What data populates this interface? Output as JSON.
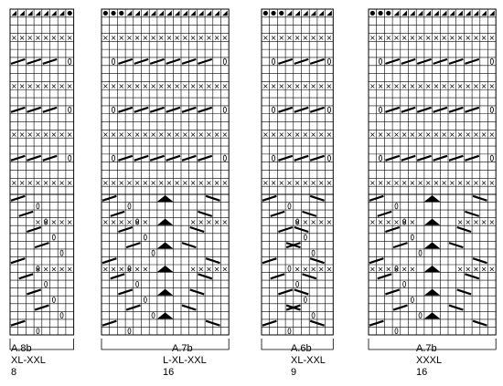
{
  "charts": [
    {
      "name": "A.8b",
      "size": "XL-XXL",
      "stitches": "8",
      "cols": 8,
      "top_rows": 18,
      "bottom_rows": 17
    },
    {
      "name": "A.7b",
      "size": "L-XL-XXL",
      "stitches": "16",
      "cols": 16,
      "top_rows": 18,
      "bottom_rows": 17
    },
    {
      "name": "A.6b",
      "size": "XL-XXL",
      "stitches": "9",
      "cols": 9,
      "top_rows": 18,
      "bottom_rows": 17
    },
    {
      "name": "A.7b",
      "size": "XXXL",
      "stitches": "16",
      "cols": 16,
      "top_rows": 18,
      "bottom_rows": 17
    }
  ],
  "symbols": {
    "purl_row": "x",
    "increase": "filled-circle",
    "decrease": "triangle-half",
    "cable": "diagonal-bar",
    "yarn_over": "oval",
    "center_decrease": "filled-triangle"
  }
}
